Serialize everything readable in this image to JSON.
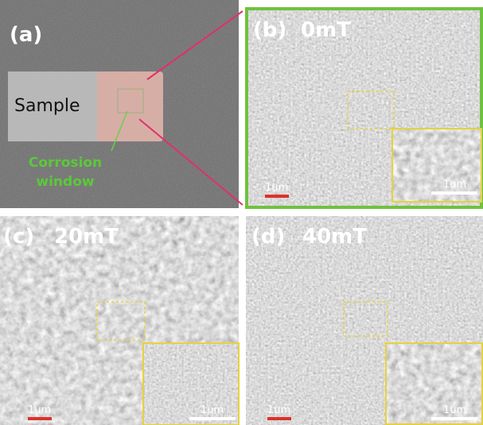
{
  "panels": [
    {
      "label": "(a)",
      "sample": "Sample",
      "window_lines": [
        "Corrosion",
        "window"
      ]
    },
    {
      "label": "(b)",
      "field": "0mT",
      "scale_bars": [
        "1um",
        "1um"
      ]
    },
    {
      "label": "(c)",
      "field": "20mT",
      "scale_bars": [
        "1um",
        "1um"
      ]
    },
    {
      "label": "(d)",
      "field": "40mT",
      "scale_bars": [
        "1um",
        "1um"
      ]
    }
  ]
}
